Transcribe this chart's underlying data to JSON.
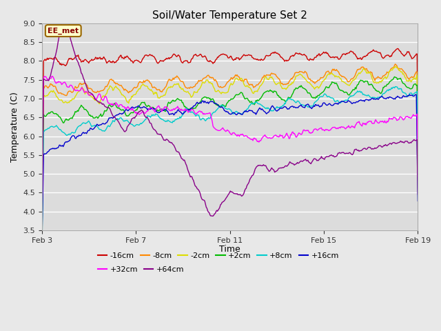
{
  "title": "Soil/Water Temperature Set 2",
  "xlabel": "Time",
  "ylabel": "Temperature (C)",
  "ylim": [
    3.5,
    9.0
  ],
  "yticks": [
    3.5,
    4.0,
    4.5,
    5.0,
    5.5,
    6.0,
    6.5,
    7.0,
    7.5,
    8.0,
    8.5,
    9.0
  ],
  "xtick_labels": [
    "Feb 3",
    "Feb 7",
    "Feb 11",
    "Feb 15",
    "Feb 19"
  ],
  "background_color": "#e8e8e8",
  "plot_bg_color": "#dcdcdc",
  "annotation_label": "EE_met",
  "annotation_bg": "#ffffcc",
  "annotation_border": "#996600",
  "annotation_text_color": "#880000",
  "series": [
    {
      "label": "-16cm",
      "color": "#cc0000"
    },
    {
      "label": "-8cm",
      "color": "#ff8800"
    },
    {
      "label": "-2cm",
      "color": "#dddd00"
    },
    {
      "label": "+2cm",
      "color": "#00bb00"
    },
    {
      "label": "+8cm",
      "color": "#00cccc"
    },
    {
      "label": "+16cm",
      "color": "#0000cc"
    },
    {
      "label": "+32cm",
      "color": "#ff00ff"
    },
    {
      "label": "+64cm",
      "color": "#880088"
    }
  ],
  "n_points": 500,
  "legend_ncol_row1": 6,
  "legend_ncol_row2": 2
}
